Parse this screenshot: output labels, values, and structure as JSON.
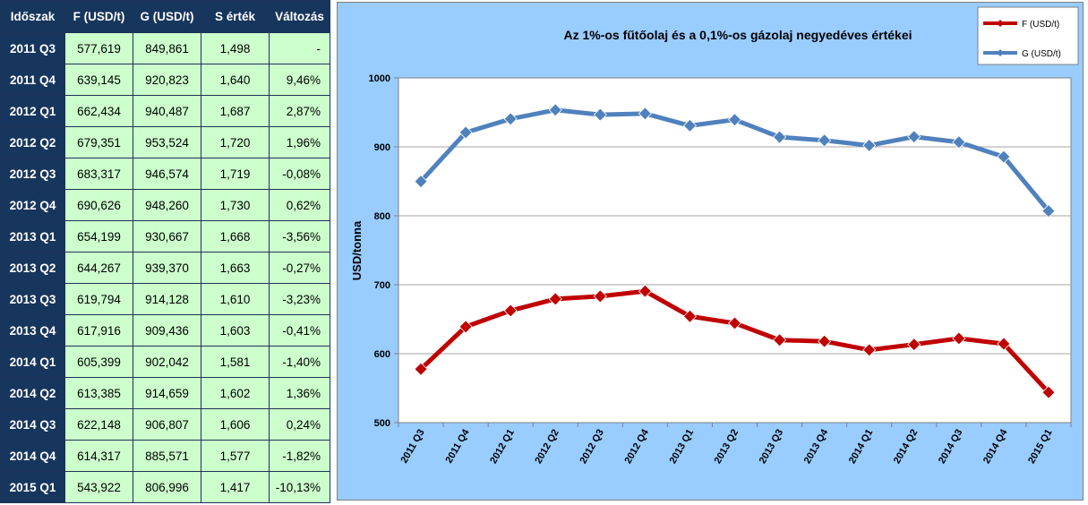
{
  "table": {
    "headers": [
      "Időszak",
      "F (USD/t)",
      "G (USD/t)",
      "S érték",
      "Változás"
    ],
    "rows": [
      [
        "2011 Q3",
        "577,619",
        "849,861",
        "1,498",
        "-"
      ],
      [
        "2011 Q4",
        "639,145",
        "920,823",
        "1,640",
        "9,46%"
      ],
      [
        "2012 Q1",
        "662,434",
        "940,487",
        "1,687",
        "2,87%"
      ],
      [
        "2012 Q2",
        "679,351",
        "953,524",
        "1,720",
        "1,96%"
      ],
      [
        "2012 Q3",
        "683,317",
        "946,574",
        "1,719",
        "-0,08%"
      ],
      [
        "2012 Q4",
        "690,626",
        "948,260",
        "1,730",
        "0,62%"
      ],
      [
        "2013 Q1",
        "654,199",
        "930,667",
        "1,668",
        "-3,56%"
      ],
      [
        "2013 Q2",
        "644,267",
        "939,370",
        "1,663",
        "-0,27%"
      ],
      [
        "2013 Q3",
        "619,794",
        "914,128",
        "1,610",
        "-3,23%"
      ],
      [
        "2013 Q4",
        "617,916",
        "909,436",
        "1,603",
        "-0,41%"
      ],
      [
        "2014 Q1",
        "605,399",
        "902,042",
        "1,581",
        "-1,40%"
      ],
      [
        "2014 Q2",
        "613,385",
        "914,659",
        "1,602",
        "1,36%"
      ],
      [
        "2014 Q3",
        "622,148",
        "906,807",
        "1,606",
        "0,24%"
      ],
      [
        "2014 Q4",
        "614,317",
        "885,571",
        "1,577",
        "-1,82%"
      ],
      [
        "2015 Q1",
        "543,922",
        "806,996",
        "1,417",
        "-10,13%"
      ]
    ]
  },
  "chart_data": {
    "type": "line",
    "title": "Az 1%-os fűtőolaj és a 0,1%-os gázolaj negyedéves értékei",
    "xlabel": "",
    "ylabel": "USD/tonna",
    "ylim": [
      500,
      1000
    ],
    "yticks": [
      500,
      600,
      700,
      800,
      900,
      1000
    ],
    "grid": true,
    "legend_position": "top-right",
    "categories": [
      "2011 Q3",
      "2011 Q4",
      "2012 Q1",
      "2012 Q2",
      "2012 Q3",
      "2012 Q4",
      "2013 Q1",
      "2013 Q2",
      "2013 Q3",
      "2013 Q4",
      "2014 Q1",
      "2014 Q2",
      "2014 Q3",
      "2014 Q4",
      "2015 Q1"
    ],
    "series": [
      {
        "name": "F (USD/t)",
        "color": "#c00000",
        "values": [
          577.619,
          639.145,
          662.434,
          679.351,
          683.317,
          690.626,
          654.199,
          644.267,
          619.794,
          617.916,
          605.399,
          613.385,
          622.148,
          614.317,
          543.922
        ]
      },
      {
        "name": "G (USD/t)",
        "color": "#4f81bd",
        "values": [
          849.861,
          920.823,
          940.487,
          953.524,
          946.574,
          948.26,
          930.667,
          939.37,
          914.128,
          909.436,
          902.042,
          914.659,
          906.807,
          885.571,
          806.996
        ]
      }
    ],
    "colors": {
      "outer_background": "#99ccff",
      "plot_background": "#ffffff",
      "grid": "#a6a6a6"
    }
  }
}
